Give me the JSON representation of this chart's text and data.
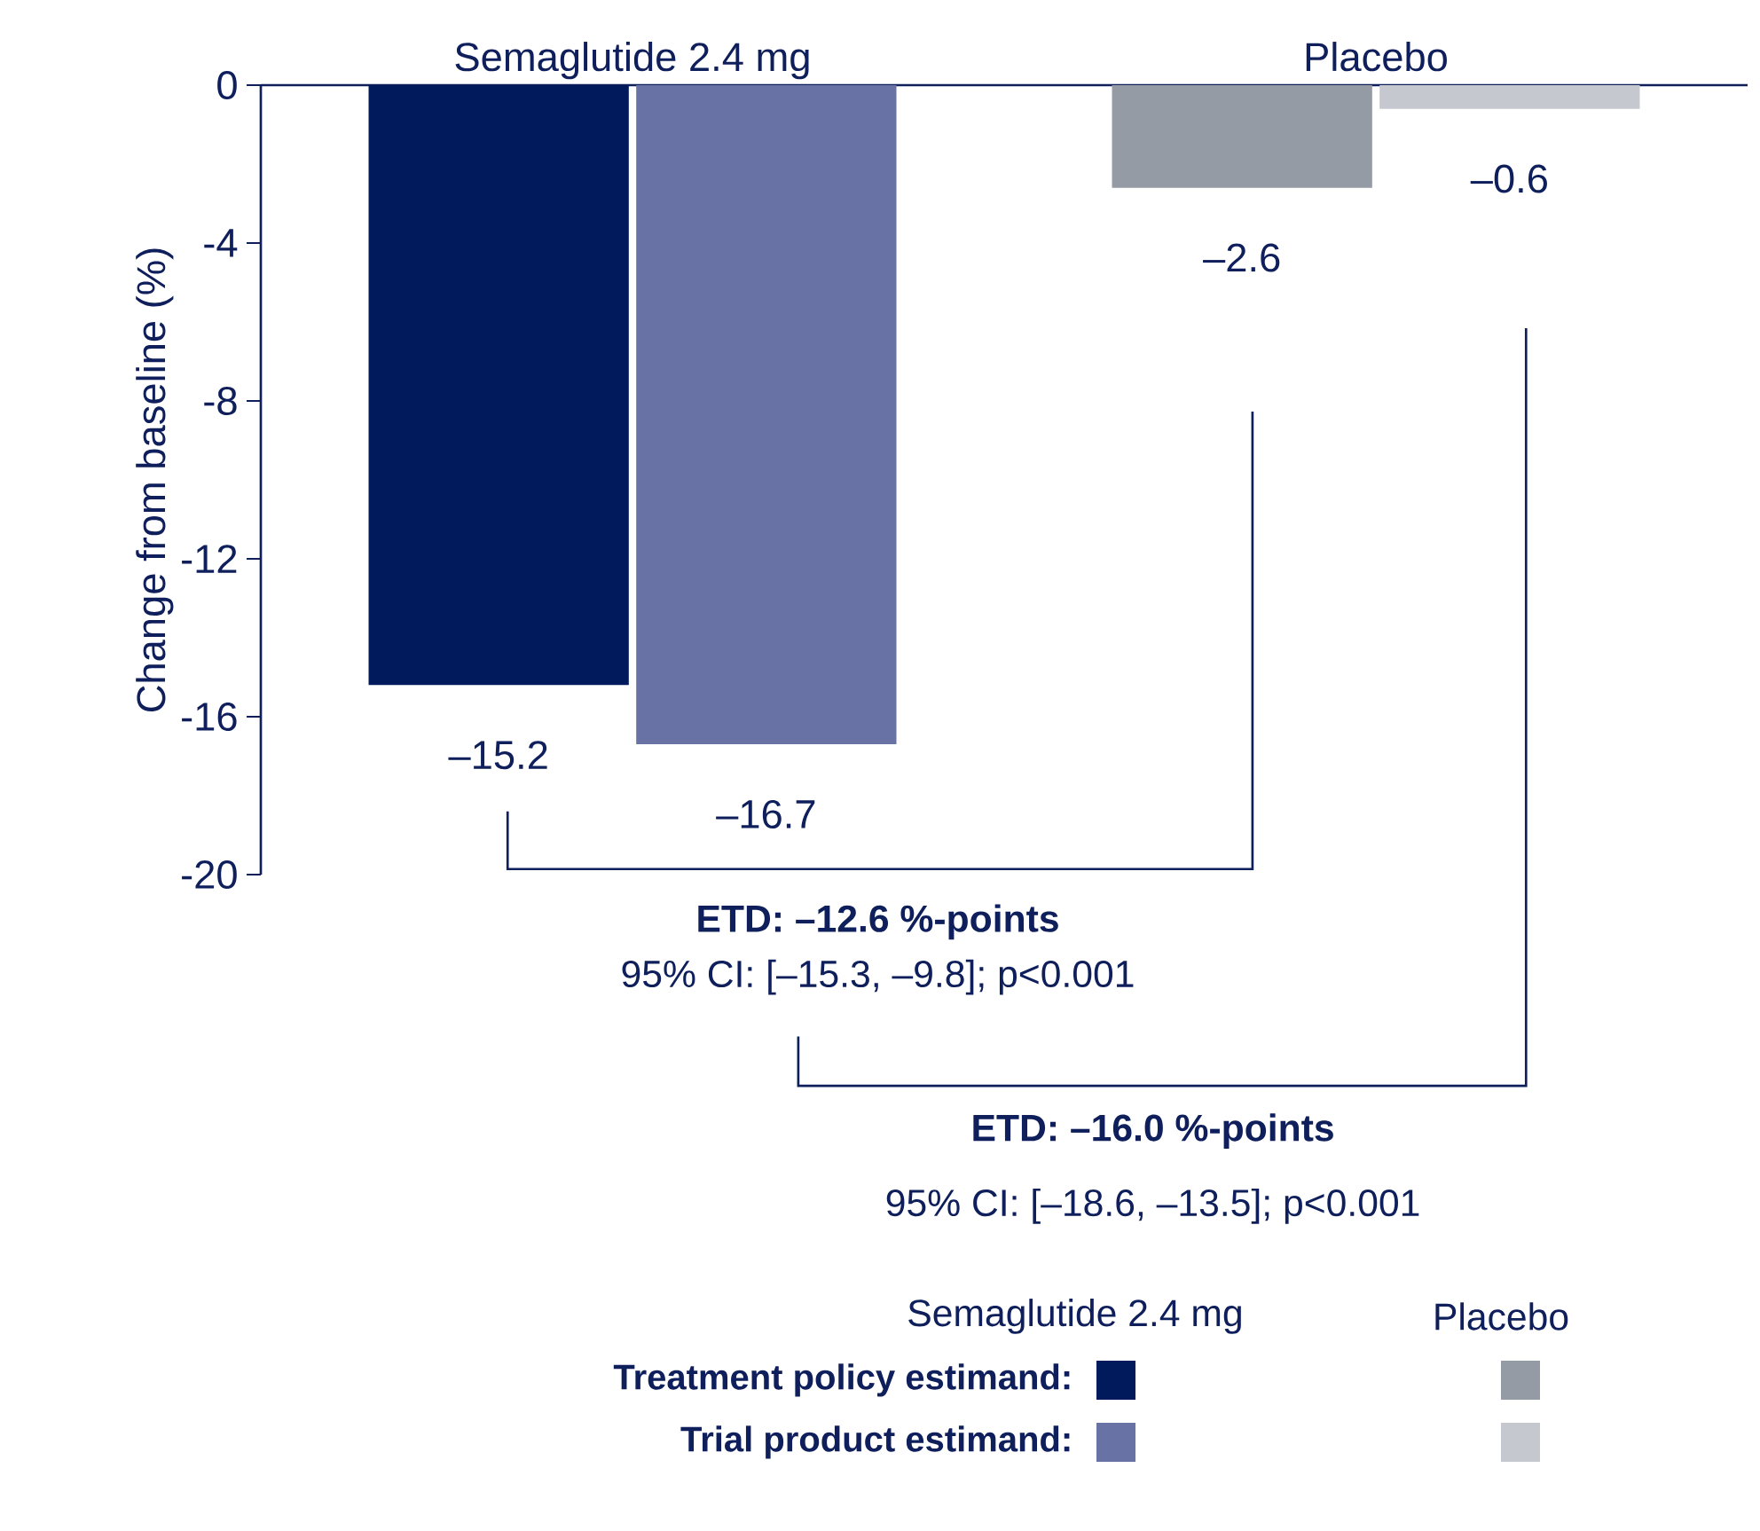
{
  "chart_data": {
    "type": "bar",
    "categories": [
      "Semaglutide 2.4 mg",
      "Placebo"
    ],
    "ylabel": "Change from baseline (%)",
    "series": [
      {
        "name": "Treatment policy estimand:",
        "colors": [
          "#001a5c",
          "#959ba5"
        ],
        "values": [
          -15.2,
          -2.6
        ],
        "value_labels": [
          "–15.2",
          "–2.6"
        ]
      },
      {
        "name": "Trial product estimand:",
        "colors": [
          "#6872a4",
          "#c6c8cf"
        ],
        "values": [
          -16.7,
          -0.6
        ],
        "value_labels": [
          "–16.7",
          "–0.6"
        ]
      }
    ],
    "ylim": [
      -20,
      0
    ],
    "yticks": [
      0,
      -4,
      -8,
      -12,
      -16,
      -20
    ],
    "annotations": [
      "ETD: –12.6 %-points",
      "95% CI: [–15.3, –9.8]; p<0.001",
      "ETD: –16.0 %-points",
      "95% CI: [–18.6, –13.5]; p<0.001"
    ],
    "legend": "bottom"
  }
}
